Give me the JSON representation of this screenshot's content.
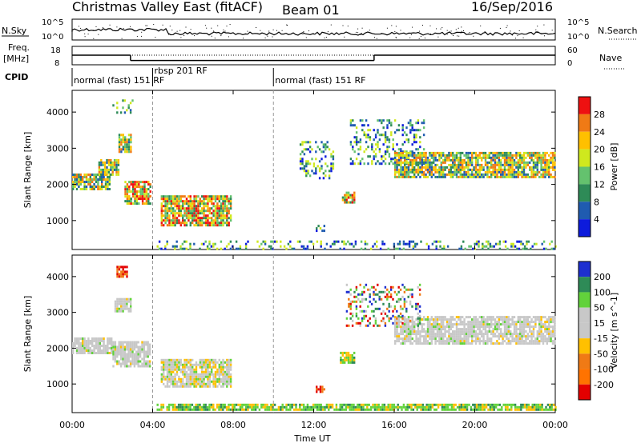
{
  "header": {
    "title": "Christmas Valley East (fitACF)",
    "beam": "Beam 01",
    "date": "16/Sep/2016"
  },
  "status_panel": {
    "nsky_label": "N.Sky",
    "nsearch_label": "N.Search",
    "nsky_ticks": [
      "10^5",
      "10^0"
    ],
    "nsearch_ticks": [
      "10^5",
      "10^0"
    ],
    "freq_label_1": "Freq.",
    "freq_label_2": "[MHz]",
    "freq_ticks": [
      "18",
      "8"
    ],
    "nave_label": "Nave",
    "nave_ticks": [
      "60",
      "0"
    ],
    "cpid_label": "CPID"
  },
  "cpid_segments": [
    {
      "start_hour": 0,
      "label": "normal (fast) 151 RF"
    },
    {
      "start_hour": 4.0,
      "label": "rbsp 201 RF"
    },
    {
      "start_hour": 10.0,
      "label": "normal (fast) 151 RF"
    }
  ],
  "freq_segments": [
    {
      "x": [
        0,
        2.9
      ],
      "y": 13.5
    },
    {
      "x": [
        2.9,
        15.0
      ],
      "y": 10.2
    },
    {
      "x": [
        15.0,
        24
      ],
      "y": 13.5
    }
  ],
  "chart_data": [
    {
      "type": "heatmap",
      "title": "",
      "xlabel": "",
      "ylabel": "Slant Range [km]",
      "xlim": [
        0,
        24
      ],
      "ylim": [
        200,
        4600
      ],
      "yticks": [
        "1000",
        "2000",
        "3000",
        "4000"
      ],
      "colorbar_label": "Power [dB]",
      "colorbar_ticks": [
        "28",
        "24",
        "20",
        "16",
        "12",
        "8",
        "4"
      ],
      "colorbar_colors": [
        "#ee1111",
        "#f07a15",
        "#ffc000",
        "#cfe81e",
        "#64c26e",
        "#2e8b57",
        "#1f5bb0",
        "#0d1bdc"
      ],
      "features": [
        {
          "time": [
            0.0,
            1.9
          ],
          "range": [
            1850,
            2300
          ],
          "level": "mid"
        },
        {
          "time": [
            1.3,
            2.3
          ],
          "range": [
            2300,
            2700
          ],
          "level": "mid"
        },
        {
          "time": [
            2.3,
            2.9
          ],
          "range": [
            2900,
            3400
          ],
          "level": "mid"
        },
        {
          "time": [
            2.0,
            3.0
          ],
          "range": [
            4000,
            4350
          ],
          "level": "low"
        },
        {
          "time": [
            2.6,
            3.9
          ],
          "range": [
            1500,
            2100
          ],
          "level": "high"
        },
        {
          "time": [
            4.4,
            7.9
          ],
          "range": [
            900,
            1700
          ],
          "level": "high"
        },
        {
          "time": [
            4.2,
            24.0
          ],
          "range": [
            250,
            450
          ],
          "level": "low"
        },
        {
          "time": [
            12.1,
            12.5
          ],
          "range": [
            750,
            950
          ],
          "level": "low"
        },
        {
          "time": [
            13.4,
            14.0
          ],
          "range": [
            1500,
            1800
          ],
          "level": "high"
        },
        {
          "time": [
            13.8,
            17.5
          ],
          "range": [
            2600,
            3800
          ],
          "level": "low"
        },
        {
          "time": [
            16.0,
            24.0
          ],
          "range": [
            2200,
            2900
          ],
          "level": "mid"
        },
        {
          "time": [
            11.3,
            13.0
          ],
          "range": [
            2200,
            3200
          ],
          "level": "low"
        }
      ]
    },
    {
      "type": "heatmap",
      "title": "",
      "xlabel": "Time UT",
      "ylabel": "Slant Range [km]",
      "xlim": [
        0,
        24
      ],
      "ylim": [
        200,
        4600
      ],
      "xticks": [
        "00:00",
        "04:00",
        "08:00",
        "12:00",
        "16:00",
        "20:00",
        "00:00"
      ],
      "yticks": [
        "1000",
        "2000",
        "3000",
        "4000"
      ],
      "colorbar_label": "Velocity [m s^-1]",
      "colorbar_ticks": [
        "200",
        "100",
        "50",
        "15",
        "-15",
        "-50",
        "-100",
        "-200"
      ],
      "colorbar_colors": [
        "#1e2fd0",
        "#2e8b57",
        "#62d23b",
        "#c8c8c8",
        "#c8c8c8",
        "#ffc000",
        "#f07a15",
        "#ff7300",
        "#e30000"
      ],
      "features": [
        {
          "time": [
            0.0,
            2.0
          ],
          "range": [
            1850,
            2300
          ],
          "level": "ground"
        },
        {
          "time": [
            2.0,
            3.9
          ],
          "range": [
            1500,
            2200
          ],
          "level": "ground"
        },
        {
          "time": [
            4.4,
            7.9
          ],
          "range": [
            900,
            1700
          ],
          "level": "mixed"
        },
        {
          "time": [
            4.2,
            24.0
          ],
          "range": [
            250,
            450
          ],
          "level": "green"
        },
        {
          "time": [
            2.1,
            2.9
          ],
          "range": [
            3000,
            3400
          ],
          "level": "ground"
        },
        {
          "time": [
            2.2,
            2.7
          ],
          "range": [
            4000,
            4300
          ],
          "level": "neg"
        },
        {
          "time": [
            16.0,
            24.0
          ],
          "range": [
            2100,
            2900
          ],
          "level": "ground"
        },
        {
          "time": [
            13.6,
            17.3
          ],
          "range": [
            2600,
            3800
          ],
          "level": "sparse"
        },
        {
          "time": [
            13.3,
            14.0
          ],
          "range": [
            1600,
            1900
          ],
          "level": "green"
        },
        {
          "time": [
            12.1,
            12.5
          ],
          "range": [
            750,
            950
          ],
          "level": "neg"
        }
      ]
    }
  ]
}
